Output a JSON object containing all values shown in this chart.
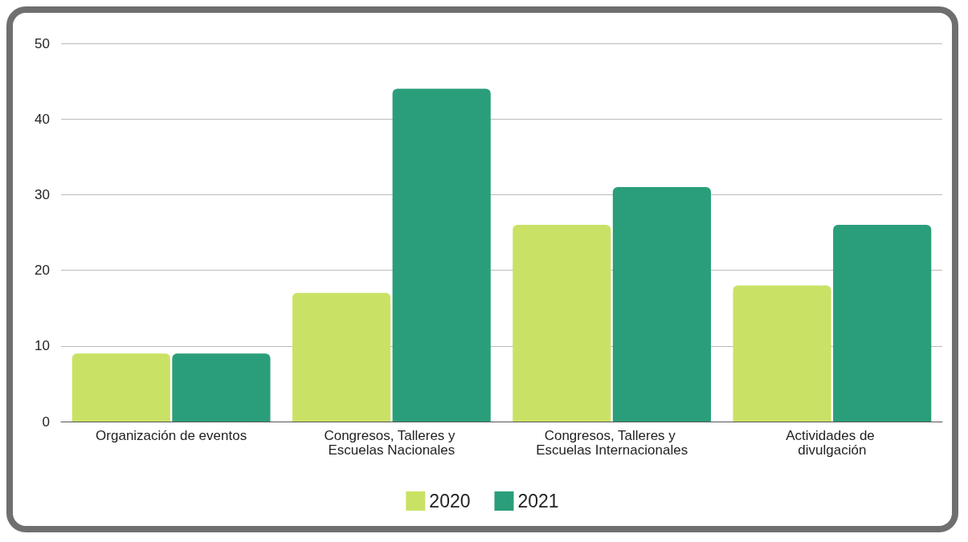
{
  "chart_data": {
    "type": "bar",
    "categories": [
      "Organización de eventos",
      "Congresos, Talleres y Escuelas Nacionales",
      "Congresos, Talleres y Escuelas Internacionales",
      "Actividades de divulgación"
    ],
    "series": [
      {
        "name": "2020",
        "color": "#c9e265",
        "values": [
          9,
          17,
          26,
          18
        ]
      },
      {
        "name": "2021",
        "color": "#2a9e7a",
        "values": [
          9,
          44,
          31,
          26
        ]
      }
    ],
    "ylim": [
      0,
      50
    ],
    "yticks": [
      0,
      10,
      20,
      30,
      40,
      50
    ],
    "grid": "y",
    "legend": "bottom"
  }
}
